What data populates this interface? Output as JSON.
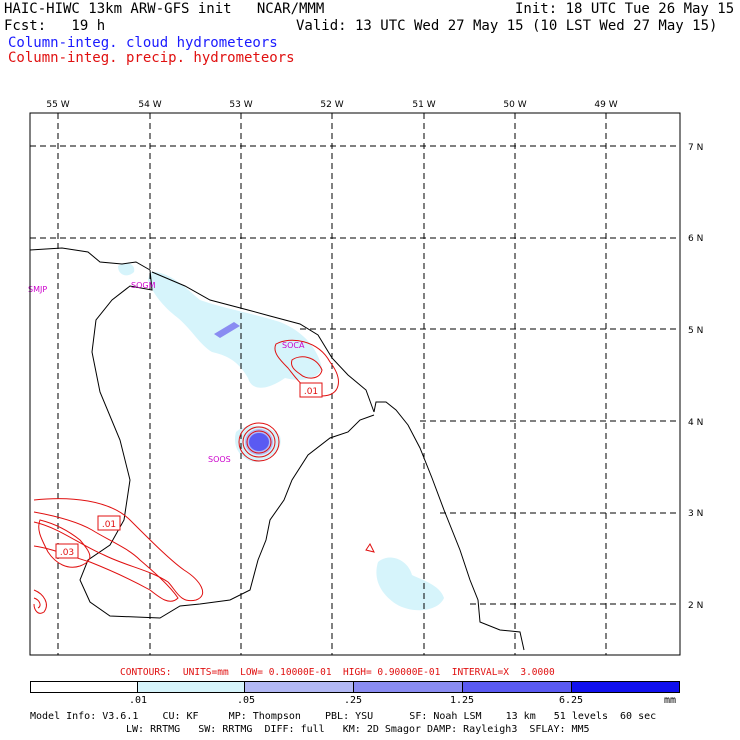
{
  "header": {
    "model_line": "HAIC-HIWC 13km ARW-GFS init   NCAR/MMM",
    "init_line": "Init: 18 UTC Tue 26 May 15",
    "fcst_line": "Fcst:   19 h",
    "valid_line": "Valid: 13 UTC Wed 27 May 15 (10 LST Wed 27 May 15)",
    "field1": "Column-integ. cloud hydrometeors",
    "field2": "Column-integ. precip. hydrometeors"
  },
  "colors": {
    "cloud_field": "#1a1aff",
    "precip_field": "#e01010",
    "station": "#cc00cc",
    "shade_1": "#d6f4fb",
    "shade_2": "#b2b8f4",
    "shade_3": "#8a8cf2",
    "shade_4": "#5a5af2",
    "shade_5": "#2a2ae8",
    "shade_6": "#1010ee"
  },
  "map": {
    "lon_labels": [
      "55 W",
      "54 W",
      "53 W",
      "52 W",
      "51 W",
      "50 W",
      "49 W"
    ],
    "lat_labels": [
      "7 N",
      "6 N",
      "5 N",
      "4 N",
      "3 N",
      "2 N"
    ],
    "stations": [
      "SMJP",
      "SOGM",
      "SOCA",
      "SOOS"
    ],
    "contour_labels": [
      ".01",
      ".01",
      ".03"
    ]
  },
  "contour_info": "CONTOURS:  UNITS=mm  LOW= 0.10000E-01  HIGH= 0.90000E-01  INTERVAL=X  3.0000",
  "colorbar": {
    "ticks": [
      ".01",
      ".05",
      ".25",
      "1.25",
      "6.25"
    ],
    "units": "mm"
  },
  "model_info": {
    "line1": "Model Info: V3.6.1    CU: KF     MP: Thompson    PBL: YSU      SF: Noah LSM    13 km   51 levels  60 sec",
    "line2": "LW: RRTMG   SW: RRTMG  DIFF: full   KM: 2D Smagor DAMP: Rayleigh3  SFLAY: MM5"
  }
}
